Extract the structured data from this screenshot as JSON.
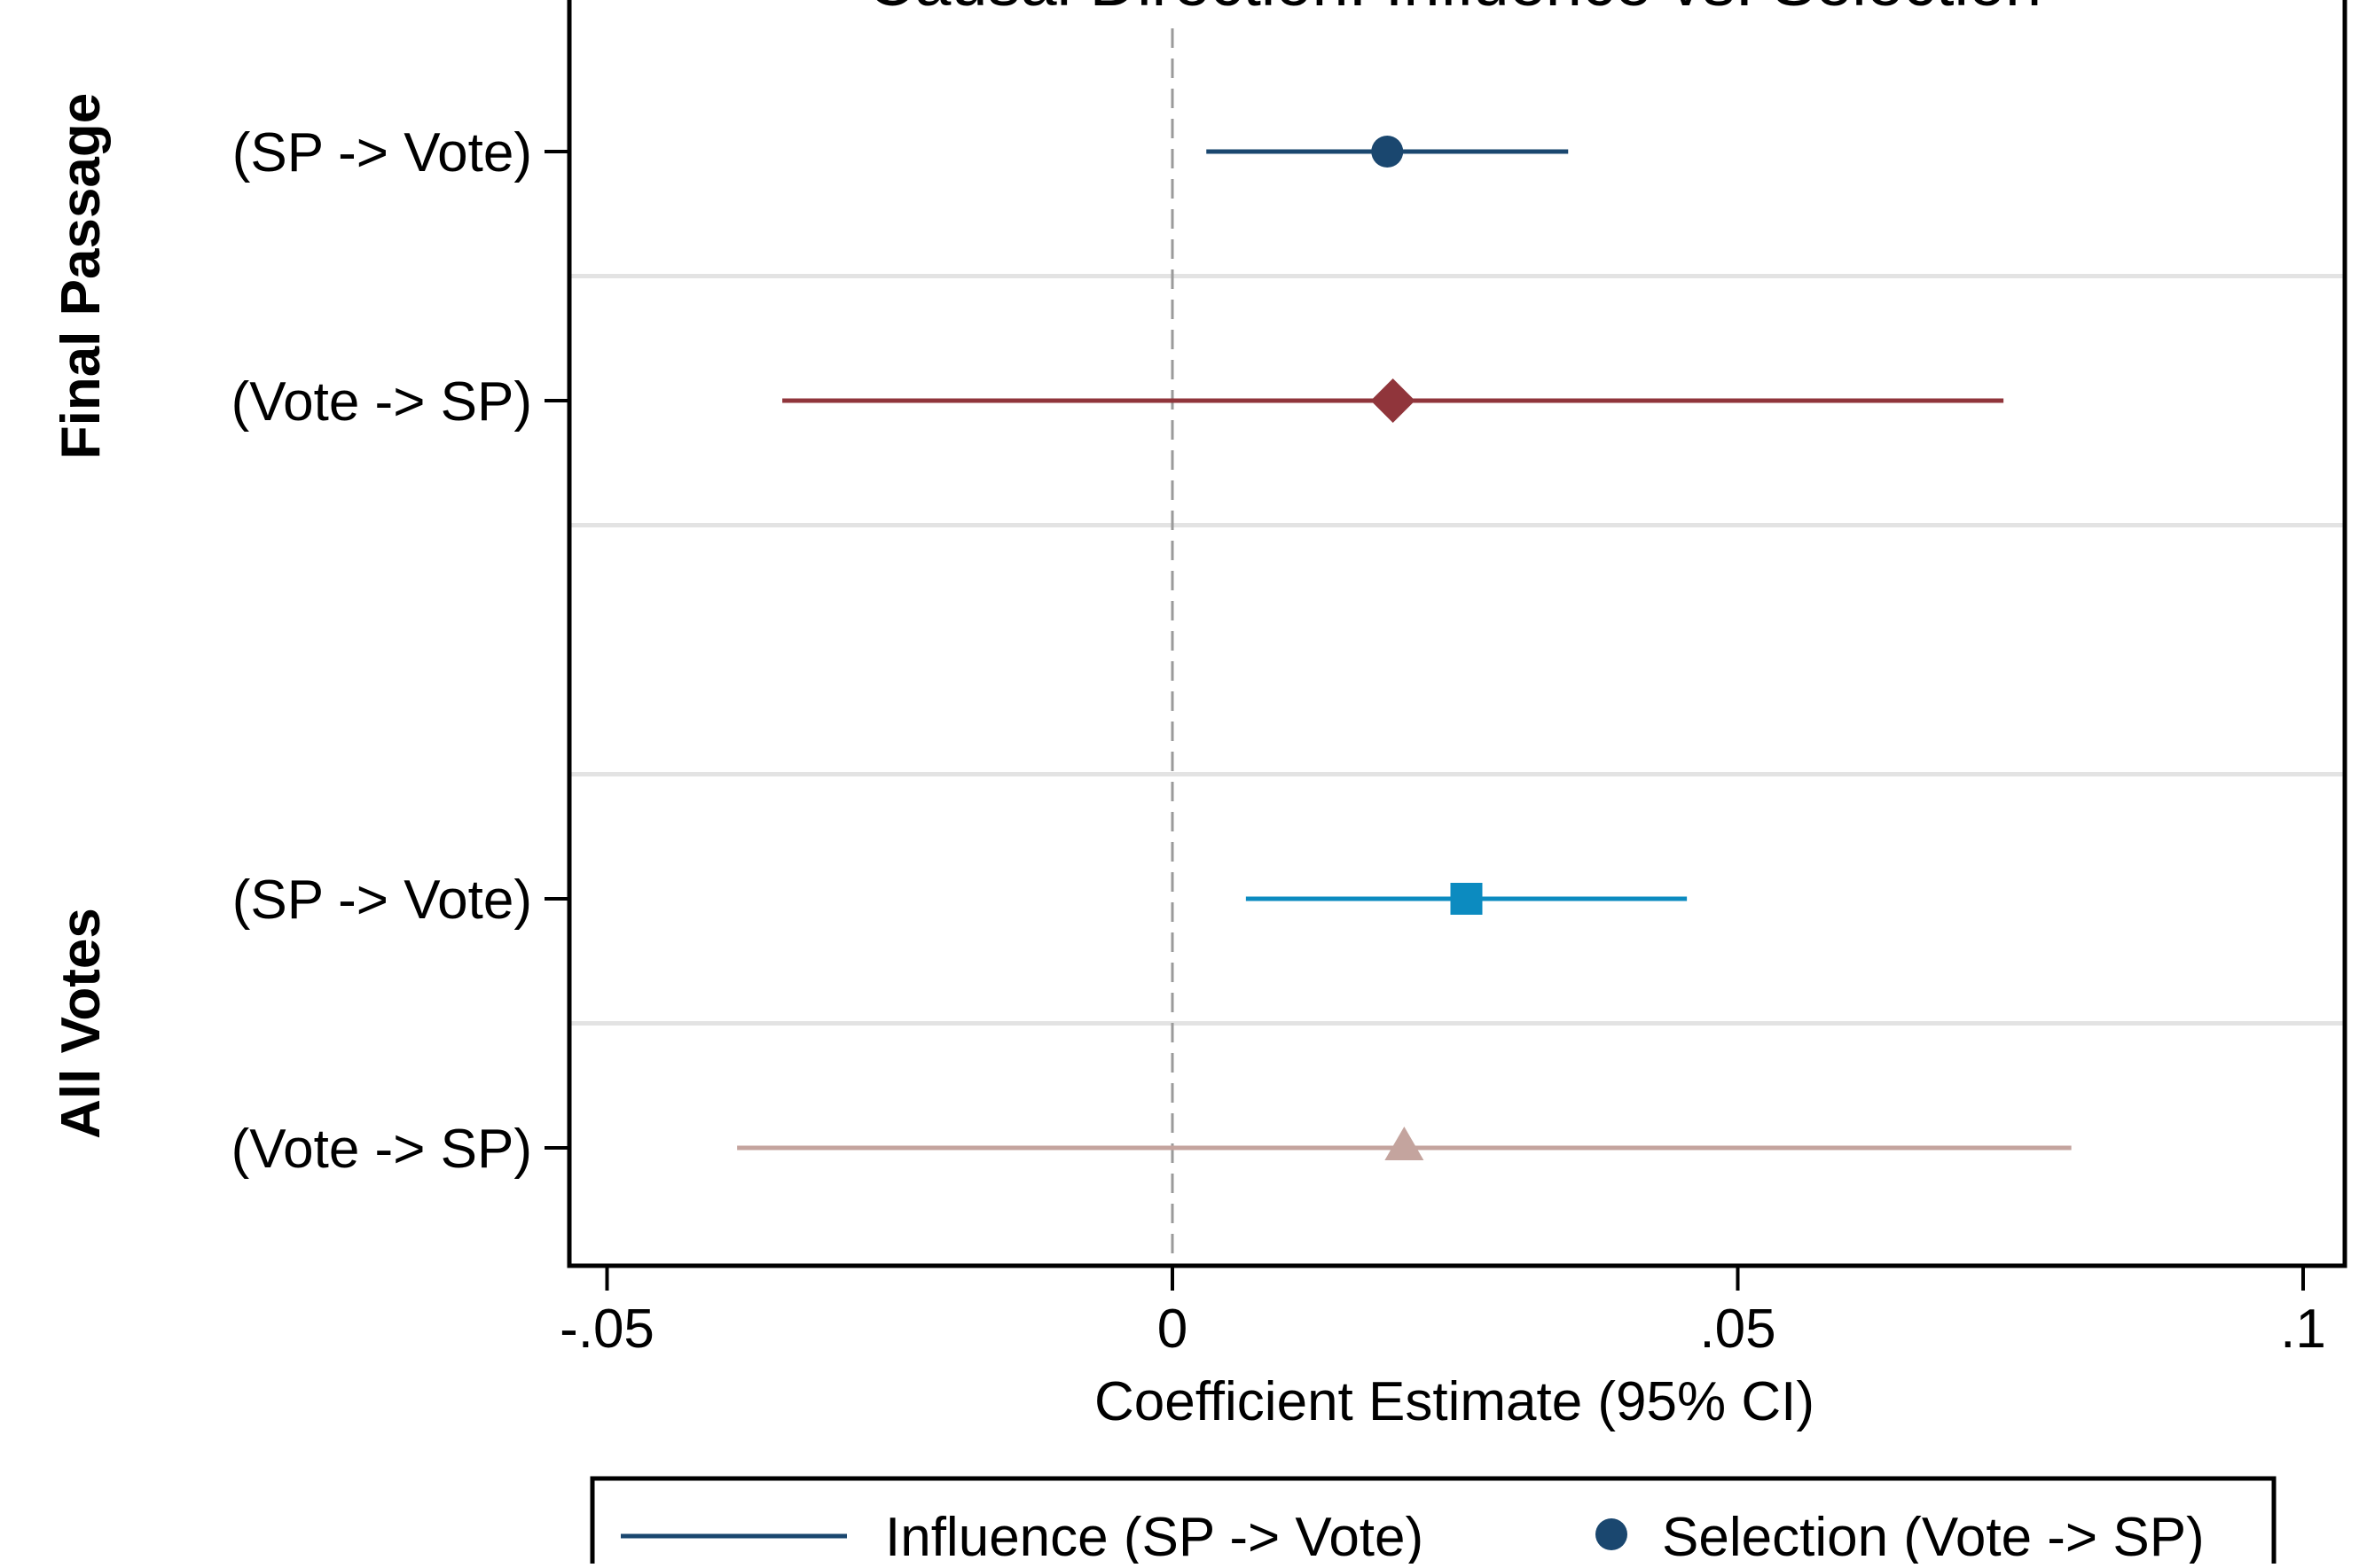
{
  "chart_data": {
    "type": "scatter",
    "title": "Causal Direction: Influence vs. Selection",
    "xlabel": "Coefficient Estimate (95% CI)",
    "ylabel": "",
    "xlim": [
      -0.052,
      0.1
    ],
    "xticks": [
      {
        "value": -0.05,
        "label": "-.05"
      },
      {
        "value": 0,
        "label": "0"
      },
      {
        "value": 0.05,
        "label": ".05"
      },
      {
        "value": 0.1,
        "label": ".1"
      }
    ],
    "reference_line": 0,
    "grid": true,
    "groups": [
      {
        "label": "Final Passage",
        "rows": [
          0,
          1
        ]
      },
      {
        "label": "All Votes",
        "rows": [
          3,
          4
        ]
      }
    ],
    "rows": [
      {
        "label": "(SP -> Vote)",
        "estimate": 0.019,
        "ci": [
          0.003,
          0.035
        ],
        "marker": "circle",
        "color": "#1a476f"
      },
      {
        "label": "(Vote -> SP)",
        "estimate": 0.0195,
        "ci": [
          -0.0345,
          0.0735
        ],
        "marker": "diamond",
        "color": "#90353b"
      },
      {
        "label": "",
        "estimate": null,
        "ci": null,
        "marker": "none",
        "color": ""
      },
      {
        "label": "(SP -> Vote)",
        "estimate": 0.026,
        "ci": [
          0.0065,
          0.0455
        ],
        "marker": "square",
        "color": "#0c8bc0"
      },
      {
        "label": "(Vote -> SP)",
        "estimate": 0.0205,
        "ci": [
          -0.0385,
          0.0795
        ],
        "marker": "triangle",
        "color": "#c4a49e"
      }
    ],
    "legend": {
      "position": "bottom",
      "entries": [
        {
          "label": "Influence (SP -> Vote)",
          "symbol": "line",
          "color": "#1a476f"
        },
        {
          "label": "Selection (Vote -> SP)",
          "symbol": "circle",
          "color": "#1a476f"
        }
      ]
    }
  }
}
